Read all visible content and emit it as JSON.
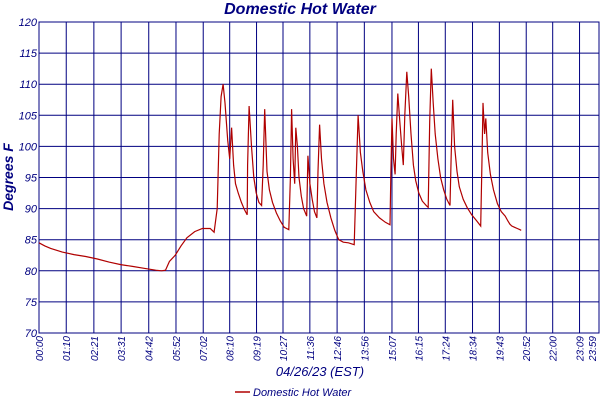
{
  "colors": {
    "grid": "#000080",
    "series": "#b00000",
    "text": "#000080",
    "background": "#ffffff"
  },
  "chart_data": {
    "type": "line",
    "title": "Domestic Hot Water",
    "xlabel": "04/26/23 (EST)",
    "ylabel": "Degrees F",
    "ylim": [
      70,
      120
    ],
    "yticks": [
      70,
      75,
      80,
      85,
      90,
      95,
      100,
      105,
      110,
      115,
      120
    ],
    "xtick_labels": [
      "00:00",
      "01:10",
      "02:21",
      "03:31",
      "04:42",
      "05:52",
      "07:02",
      "08:10",
      "09:19",
      "10:27",
      "11:36",
      "12:46",
      "13:56",
      "15:07",
      "16:15",
      "17:24",
      "18:34",
      "19:43",
      "20:52",
      "22:00",
      "23:09",
      "23:59"
    ],
    "x_unit": "minutes since 00:00",
    "grid": true,
    "legend_position": "bottom-center",
    "series": [
      {
        "name": "Domestic Hot Water",
        "points": [
          [
            0,
            84.5
          ],
          [
            15,
            84
          ],
          [
            30,
            83.6
          ],
          [
            60,
            83
          ],
          [
            90,
            82.6
          ],
          [
            120,
            82.3
          ],
          [
            150,
            81.9
          ],
          [
            180,
            81.4
          ],
          [
            210,
            81
          ],
          [
            240,
            80.7
          ],
          [
            270,
            80.4
          ],
          [
            300,
            80.1
          ],
          [
            315,
            80
          ],
          [
            325,
            80.1
          ],
          [
            335,
            81.5
          ],
          [
            350,
            82.5
          ],
          [
            365,
            84
          ],
          [
            380,
            85.3
          ],
          [
            400,
            86.3
          ],
          [
            420,
            86.8
          ],
          [
            440,
            86.8
          ],
          [
            450,
            86.2
          ],
          [
            458,
            90
          ],
          [
            463,
            102
          ],
          [
            468,
            108
          ],
          [
            473,
            110
          ],
          [
            478,
            107
          ],
          [
            485,
            101
          ],
          [
            490,
            98
          ],
          [
            495,
            103
          ],
          [
            500,
            97
          ],
          [
            505,
            94
          ],
          [
            512,
            92.5
          ],
          [
            520,
            91
          ],
          [
            528,
            89.8
          ],
          [
            535,
            89
          ],
          [
            536,
            97
          ],
          [
            540,
            106.5
          ],
          [
            546,
            100
          ],
          [
            552,
            95
          ],
          [
            558,
            92.5
          ],
          [
            565,
            91
          ],
          [
            572,
            90.5
          ],
          [
            576,
            97
          ],
          [
            580,
            106
          ],
          [
            586,
            96
          ],
          [
            592,
            93
          ],
          [
            600,
            91
          ],
          [
            610,
            89.3
          ],
          [
            620,
            88
          ],
          [
            630,
            87
          ],
          [
            642,
            86.6
          ],
          [
            646,
            95
          ],
          [
            649,
            106
          ],
          [
            653,
            98
          ],
          [
            657,
            94
          ],
          [
            660,
            103
          ],
          [
            664,
            100
          ],
          [
            668,
            95
          ],
          [
            674,
            92
          ],
          [
            680,
            90
          ],
          [
            688,
            88.8
          ],
          [
            691,
            98.5
          ],
          [
            696,
            94
          ],
          [
            702,
            91.5
          ],
          [
            708,
            89.5
          ],
          [
            714,
            88.5
          ],
          [
            717,
            96
          ],
          [
            721,
            103.5
          ],
          [
            726,
            98
          ],
          [
            732,
            94
          ],
          [
            740,
            91
          ],
          [
            750,
            88.5
          ],
          [
            760,
            86.5
          ],
          [
            770,
            85
          ],
          [
            782,
            84.6
          ],
          [
            795,
            84.5
          ],
          [
            810,
            84.2
          ],
          [
            815,
            95
          ],
          [
            820,
            105
          ],
          [
            826,
            99
          ],
          [
            832,
            96
          ],
          [
            840,
            93
          ],
          [
            850,
            91
          ],
          [
            860,
            89.5
          ],
          [
            875,
            88.5
          ],
          [
            890,
            87.8
          ],
          [
            902,
            87.4
          ],
          [
            904,
            95
          ],
          [
            907,
            104.5
          ],
          [
            911,
            98
          ],
          [
            915,
            95.5
          ],
          [
            918,
            102
          ],
          [
            922,
            108.5
          ],
          [
            927,
            104
          ],
          [
            932,
            100
          ],
          [
            936,
            97
          ],
          [
            940,
            105
          ],
          [
            945,
            112
          ],
          [
            950,
            108
          ],
          [
            956,
            102
          ],
          [
            962,
            97
          ],
          [
            968,
            94.5
          ],
          [
            976,
            92.5
          ],
          [
            985,
            91.2
          ],
          [
            995,
            90.5
          ],
          [
            1000,
            90.2
          ],
          [
            1004,
            104
          ],
          [
            1008,
            112.5
          ],
          [
            1013,
            107
          ],
          [
            1018,
            102
          ],
          [
            1025,
            98
          ],
          [
            1032,
            95
          ],
          [
            1040,
            93
          ],
          [
            1048,
            91.5
          ],
          [
            1056,
            90.5
          ],
          [
            1059,
            98
          ],
          [
            1063,
            107.5
          ],
          [
            1068,
            100
          ],
          [
            1074,
            96
          ],
          [
            1080,
            93.5
          ],
          [
            1090,
            91.5
          ],
          [
            1100,
            90.2
          ],
          [
            1112,
            89
          ],
          [
            1125,
            88
          ],
          [
            1135,
            87.2
          ],
          [
            1138,
            97
          ],
          [
            1141,
            107
          ],
          [
            1145,
            102
          ],
          [
            1148,
            104.5
          ],
          [
            1153,
            99
          ],
          [
            1160,
            95.5
          ],
          [
            1168,
            93
          ],
          [
            1178,
            90.8
          ],
          [
            1188,
            89.5
          ],
          [
            1198,
            88.8
          ],
          [
            1205,
            88
          ],
          [
            1210,
            87.5
          ],
          [
            1215,
            87.2
          ],
          [
            1222,
            87
          ],
          [
            1229,
            86.8
          ],
          [
            1236,
            86.6
          ],
          [
            1239,
            86.5
          ]
        ]
      }
    ],
    "x_range": [
      0,
      1439
    ]
  }
}
